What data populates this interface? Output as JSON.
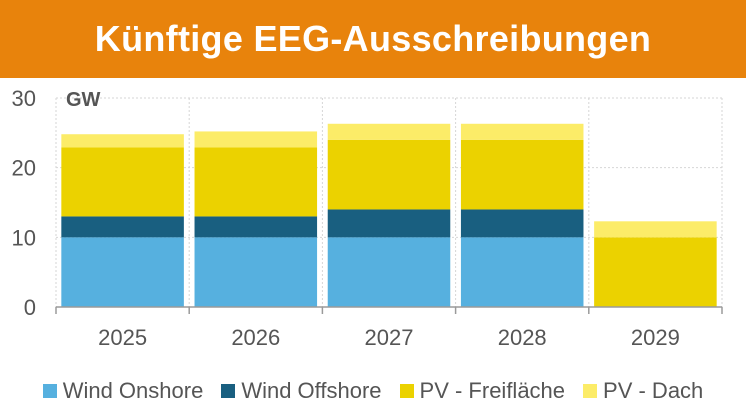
{
  "header": {
    "title": "Künftige EEG-Ausschreibungen"
  },
  "colors": {
    "banner": "#E8830C",
    "wind_onshore": "#56B0DF",
    "wind_offshore": "#195F80",
    "pv_freiflaeche": "#EBD200",
    "pv_dach": "#FCEC68"
  },
  "chart_data": {
    "type": "bar",
    "stacked": true,
    "unit_label": "GW",
    "categories": [
      "2025",
      "2026",
      "2027",
      "2028",
      "2029"
    ],
    "series": [
      {
        "name": "Wind Onshore",
        "color": "#56B0DF",
        "values": [
          10,
          10,
          10,
          10,
          0
        ]
      },
      {
        "name": "Wind Offshore",
        "color": "#195F80",
        "values": [
          3,
          3,
          4,
          4,
          0
        ]
      },
      {
        "name": "PV - Freifläche",
        "color": "#EBD200",
        "values": [
          9.9,
          9.9,
          10,
          10,
          10
        ]
      },
      {
        "name": "PV - Dach",
        "color": "#FCEC68",
        "values": [
          1.9,
          2.3,
          2.3,
          2.3,
          2.3
        ]
      }
    ],
    "ylim": [
      0,
      30
    ],
    "yticks": [
      "0",
      "10",
      "20",
      "30"
    ],
    "grid": true,
    "legend_position": "bottom"
  }
}
